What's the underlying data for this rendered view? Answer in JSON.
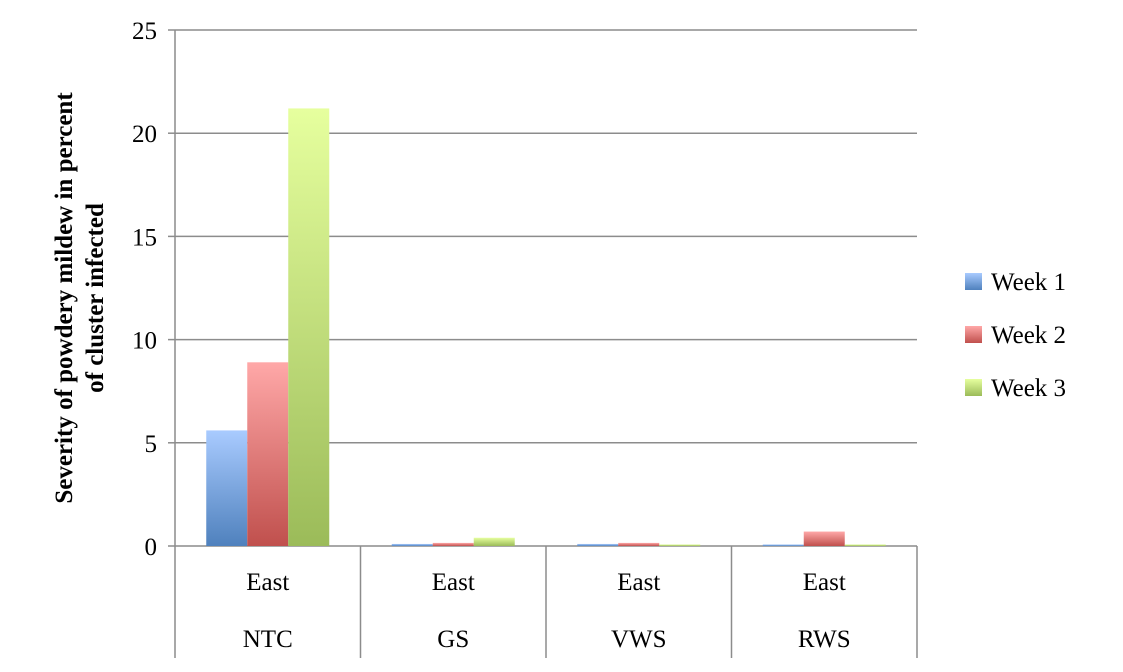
{
  "chart_data": {
    "type": "bar",
    "ylabel_line1": "Severity of powdery mildew in percent",
    "ylabel_line2": "of cluster infected",
    "xlabel": "",
    "ylim": [
      0,
      25
    ],
    "yticks": [
      0,
      5,
      10,
      15,
      20,
      25
    ],
    "grid": true,
    "legend_position": "right",
    "categories": [
      {
        "top": "East",
        "bottom": "NTC"
      },
      {
        "top": "East",
        "bottom": "GS"
      },
      {
        "top": "East",
        "bottom": "VWS"
      },
      {
        "top": "East",
        "bottom": "RWS"
      }
    ],
    "series": [
      {
        "name": "Week 1",
        "color": "#4F81BD",
        "light": "#A9CBFF",
        "values": [
          5.6,
          0.1,
          0.1,
          0.05
        ]
      },
      {
        "name": "Week 2",
        "color": "#C0504D",
        "light": "#FFA8A8",
        "values": [
          8.9,
          0.15,
          0.15,
          0.7
        ]
      },
      {
        "name": "Week 3",
        "color": "#9BBB59",
        "light": "#E6FF9E",
        "values": [
          21.2,
          0.4,
          0.05,
          0.05
        ]
      }
    ]
  }
}
